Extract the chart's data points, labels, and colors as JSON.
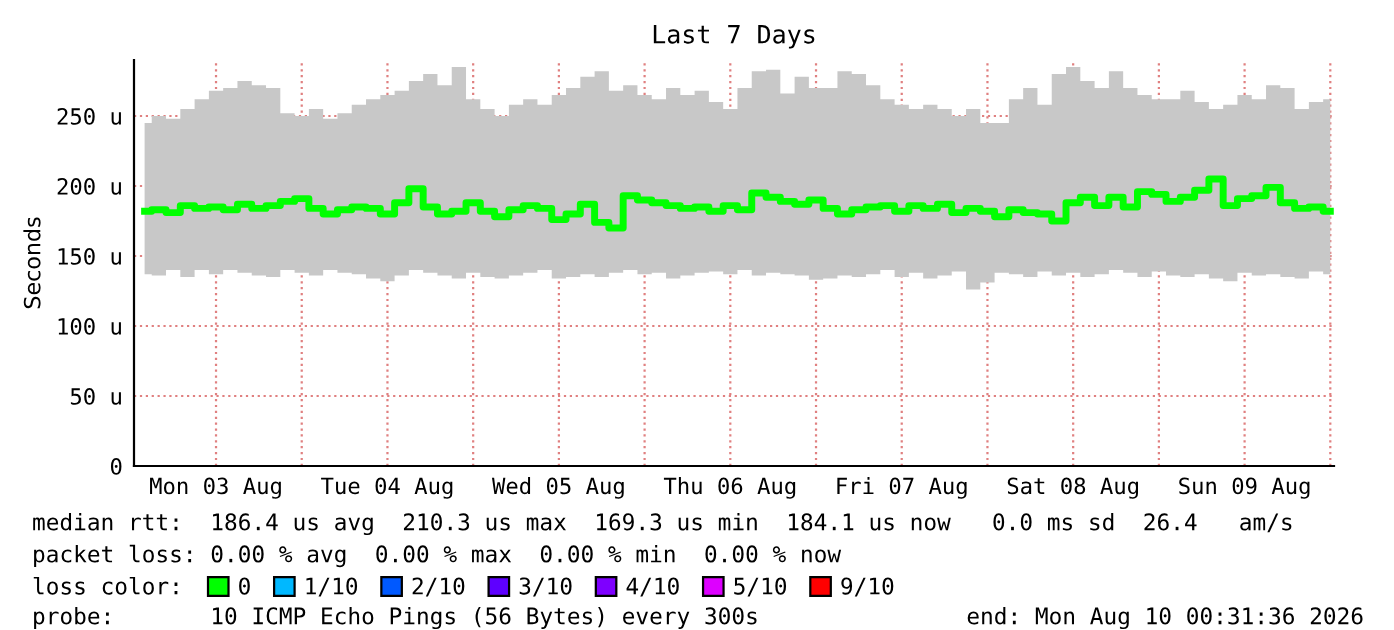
{
  "chart_data": {
    "type": "step",
    "title": "Last 7 Days",
    "ylabel": "Seconds",
    "x": [
      "2026-08-03T02:00",
      "2026-08-03T04:00",
      "2026-08-03T06:00",
      "2026-08-03T08:00",
      "2026-08-03T10:00",
      "2026-08-03T12:00",
      "2026-08-03T14:00",
      "2026-08-03T16:00",
      "2026-08-03T18:00",
      "2026-08-03T20:00",
      "2026-08-03T22:00",
      "2026-08-04T00:00",
      "2026-08-04T02:00",
      "2026-08-04T04:00",
      "2026-08-04T06:00",
      "2026-08-04T08:00",
      "2026-08-04T10:00",
      "2026-08-04T12:00",
      "2026-08-04T14:00",
      "2026-08-04T16:00",
      "2026-08-04T18:00",
      "2026-08-04T20:00",
      "2026-08-04T22:00",
      "2026-08-05T00:00",
      "2026-08-05T02:00",
      "2026-08-05T04:00",
      "2026-08-05T06:00",
      "2026-08-05T08:00",
      "2026-08-05T10:00",
      "2026-08-05T12:00",
      "2026-08-05T14:00",
      "2026-08-05T16:00",
      "2026-08-05T18:00",
      "2026-08-05T20:00",
      "2026-08-05T22:00",
      "2026-08-06T00:00",
      "2026-08-06T02:00",
      "2026-08-06T04:00",
      "2026-08-06T06:00",
      "2026-08-06T08:00",
      "2026-08-06T10:00",
      "2026-08-06T12:00",
      "2026-08-06T14:00",
      "2026-08-06T16:00",
      "2026-08-06T18:00",
      "2026-08-06T20:00",
      "2026-08-06T22:00",
      "2026-08-07T00:00",
      "2026-08-07T02:00",
      "2026-08-07T04:00",
      "2026-08-07T06:00",
      "2026-08-07T08:00",
      "2026-08-07T10:00",
      "2026-08-07T12:00",
      "2026-08-07T14:00",
      "2026-08-07T16:00",
      "2026-08-07T18:00",
      "2026-08-07T20:00",
      "2026-08-07T22:00",
      "2026-08-08T00:00",
      "2026-08-08T02:00",
      "2026-08-08T04:00",
      "2026-08-08T06:00",
      "2026-08-08T08:00",
      "2026-08-08T10:00",
      "2026-08-08T12:00",
      "2026-08-08T14:00",
      "2026-08-08T16:00",
      "2026-08-08T18:00",
      "2026-08-08T20:00",
      "2026-08-08T22:00",
      "2026-08-09T00:00",
      "2026-08-09T02:00",
      "2026-08-09T04:00",
      "2026-08-09T06:00",
      "2026-08-09T08:00",
      "2026-08-09T10:00",
      "2026-08-09T12:00",
      "2026-08-09T14:00",
      "2026-08-09T16:00",
      "2026-08-09T18:00",
      "2026-08-09T20:00",
      "2026-08-09T22:00",
      "2026-08-10T00:00"
    ],
    "series": [
      {
        "name": "0",
        "color": "#00ff00",
        "values": [
          182,
          183,
          181,
          186,
          184,
          185,
          183,
          187,
          184,
          186,
          189,
          191,
          184,
          180,
          183,
          185,
          184,
          180,
          188,
          198,
          185,
          180,
          182,
          188,
          182,
          178,
          183,
          186,
          184,
          176,
          180,
          187,
          174,
          170,
          193,
          190,
          188,
          186,
          184,
          185,
          182,
          186,
          183,
          195,
          192,
          189,
          187,
          190,
          184,
          180,
          183,
          185,
          186,
          182,
          186,
          184,
          187,
          181,
          184,
          182,
          178,
          183,
          181,
          180,
          175,
          188,
          192,
          186,
          192,
          185,
          196,
          194,
          189,
          192,
          197,
          205,
          186,
          191,
          193,
          199,
          188,
          184,
          185,
          182
        ],
        "upper": [
          245,
          250,
          248,
          255,
          262,
          268,
          270,
          275,
          272,
          270,
          252,
          250,
          255,
          248,
          252,
          258,
          262,
          265,
          268,
          275,
          280,
          272,
          285,
          262,
          255,
          250,
          258,
          262,
          258,
          265,
          270,
          278,
          282,
          268,
          272,
          265,
          262,
          270,
          265,
          268,
          260,
          255,
          270,
          282,
          283,
          266,
          278,
          270,
          270,
          282,
          280,
          272,
          262,
          258,
          255,
          258,
          255,
          250,
          255,
          245,
          245,
          262,
          270,
          258,
          280,
          285,
          275,
          270,
          282,
          270,
          265,
          262,
          262,
          268,
          260,
          255,
          258,
          265,
          262,
          272,
          270,
          255,
          260,
          262
        ],
        "lower": [
          137,
          136,
          140,
          135,
          140,
          137,
          140,
          138,
          136,
          135,
          140,
          138,
          136,
          140,
          138,
          137,
          134,
          132,
          136,
          140,
          138,
          136,
          134,
          138,
          135,
          134,
          136,
          138,
          140,
          134,
          135,
          137,
          135,
          138,
          140,
          137,
          138,
          134,
          136,
          138,
          139,
          137,
          140,
          136,
          138,
          137,
          136,
          133,
          134,
          136,
          135,
          137,
          140,
          135,
          138,
          134,
          136,
          139,
          126,
          131,
          138,
          137,
          135,
          139,
          136,
          138,
          135,
          137,
          140,
          138,
          135,
          139,
          136,
          135,
          137,
          134,
          132,
          138,
          136,
          137,
          135,
          134,
          139,
          137
        ]
      },
      {
        "name": "1/10",
        "color": "#00b8ff",
        "values": [
          null,
          null,
          null,
          null,
          null,
          null,
          null,
          null,
          null,
          null,
          null,
          null,
          null,
          null,
          null,
          null,
          null,
          null,
          null,
          null,
          null,
          null,
          null,
          null,
          null,
          null,
          null,
          null,
          null,
          null,
          null,
          null,
          null,
          null,
          null,
          null,
          null,
          null,
          null,
          null,
          null,
          null,
          null,
          null,
          null,
          null,
          null,
          null,
          null,
          null,
          null,
          null,
          null,
          null,
          null,
          null,
          null,
          null,
          null,
          null,
          null,
          null,
          null,
          null,
          null,
          null,
          null,
          null,
          null,
          null,
          null,
          null,
          null,
          null,
          null,
          null,
          null,
          null,
          null,
          null,
          null,
          null,
          null,
          null
        ]
      },
      {
        "name": "2/10",
        "color": "#0059ff",
        "values": [
          null,
          null,
          null,
          null,
          null,
          null,
          null,
          null,
          null,
          null,
          null,
          null,
          null,
          null,
          null,
          null,
          null,
          null,
          null,
          null,
          null,
          null,
          null,
          null,
          null,
          null,
          null,
          null,
          null,
          null,
          null,
          null,
          null,
          null,
          null,
          null,
          null,
          null,
          null,
          null,
          null,
          null,
          null,
          null,
          null,
          null,
          null,
          null,
          null,
          null,
          null,
          null,
          null,
          null,
          null,
          null,
          null,
          null,
          null,
          null,
          null,
          null,
          null,
          null,
          null,
          null,
          null,
          null,
          null,
          null,
          null,
          null,
          null,
          null,
          null,
          null,
          null,
          null,
          null,
          null,
          null,
          null,
          null,
          null
        ]
      },
      {
        "name": "3/10",
        "color": "#5e00ff",
        "values": [
          null,
          null,
          null,
          null,
          null,
          null,
          null,
          null,
          null,
          null,
          null,
          null,
          null,
          null,
          null,
          null,
          null,
          null,
          null,
          null,
          null,
          null,
          null,
          null,
          null,
          null,
          null,
          null,
          null,
          null,
          null,
          null,
          null,
          null,
          null,
          null,
          null,
          null,
          null,
          null,
          null,
          null,
          null,
          null,
          null,
          null,
          null,
          null,
          null,
          null,
          null,
          null,
          null,
          null,
          null,
          null,
          null,
          null,
          null,
          null,
          null,
          null,
          null,
          null,
          null,
          null,
          null,
          null,
          null,
          null,
          null,
          null,
          null,
          null,
          null,
          null,
          null,
          null,
          null,
          null,
          null,
          null,
          null,
          null
        ]
      },
      {
        "name": "4/10",
        "color": "#7e00ff",
        "values": [
          null,
          null,
          null,
          null,
          null,
          null,
          null,
          null,
          null,
          null,
          null,
          null,
          null,
          null,
          null,
          null,
          null,
          null,
          null,
          null,
          null,
          null,
          null,
          null,
          null,
          null,
          null,
          null,
          null,
          null,
          null,
          null,
          null,
          null,
          null,
          null,
          null,
          null,
          null,
          null,
          null,
          null,
          null,
          null,
          null,
          null,
          null,
          null,
          null,
          null,
          null,
          null,
          null,
          null,
          null,
          null,
          null,
          null,
          null,
          null,
          null,
          null,
          null,
          null,
          null,
          null,
          null,
          null,
          null,
          null,
          null,
          null,
          null,
          null,
          null,
          null,
          null,
          null,
          null,
          null,
          null,
          null,
          null,
          null
        ]
      },
      {
        "name": "5/10",
        "color": "#dd00ff",
        "values": [
          null,
          null,
          null,
          null,
          null,
          null,
          null,
          null,
          null,
          null,
          null,
          null,
          null,
          null,
          null,
          null,
          null,
          null,
          null,
          null,
          null,
          null,
          null,
          null,
          null,
          null,
          null,
          null,
          null,
          null,
          null,
          null,
          null,
          null,
          null,
          null,
          null,
          null,
          null,
          null,
          null,
          null,
          null,
          null,
          null,
          null,
          null,
          null,
          null,
          null,
          null,
          null,
          null,
          null,
          null,
          null,
          null,
          null,
          null,
          null,
          null,
          null,
          null,
          null,
          null,
          null,
          null,
          null,
          null,
          null,
          null,
          null,
          null,
          null,
          null,
          null,
          null,
          null,
          null,
          null,
          null,
          null,
          null,
          null
        ]
      },
      {
        "name": "9/10",
        "color": "#ff0000",
        "values": [
          null,
          null,
          null,
          null,
          null,
          null,
          null,
          null,
          null,
          null,
          null,
          null,
          null,
          null,
          null,
          null,
          null,
          null,
          null,
          null,
          null,
          null,
          null,
          null,
          null,
          null,
          null,
          null,
          null,
          null,
          null,
          null,
          null,
          null,
          null,
          null,
          null,
          null,
          null,
          null,
          null,
          null,
          null,
          null,
          null,
          null,
          null,
          null,
          null,
          null,
          null,
          null,
          null,
          null,
          null,
          null,
          null,
          null,
          null,
          null,
          null,
          null,
          null,
          null,
          null,
          null,
          null,
          null,
          null,
          null,
          null,
          null,
          null,
          null,
          null,
          null,
          null,
          null,
          null,
          null,
          null,
          null,
          null,
          null
        ]
      }
    ],
    "xlim": [
      "2026-08-03T00:31",
      "2026-08-10T00:31"
    ],
    "xticks": [
      {
        "value": "2026-08-03T12:00",
        "label": "Mon 03 Aug"
      },
      {
        "value": "2026-08-04T00:00",
        "label": null
      },
      {
        "value": "2026-08-04T12:00",
        "label": "Tue 04 Aug"
      },
      {
        "value": "2026-08-05T00:00",
        "label": null
      },
      {
        "value": "2026-08-05T12:00",
        "label": "Wed 05 Aug"
      },
      {
        "value": "2026-08-06T00:00",
        "label": null
      },
      {
        "value": "2026-08-06T12:00",
        "label": "Thu 06 Aug"
      },
      {
        "value": "2026-08-07T00:00",
        "label": null
      },
      {
        "value": "2026-08-07T12:00",
        "label": "Fri 07 Aug"
      },
      {
        "value": "2026-08-08T00:00",
        "label": null
      },
      {
        "value": "2026-08-08T12:00",
        "label": "Sat 08 Aug"
      },
      {
        "value": "2026-08-09T00:00",
        "label": null
      },
      {
        "value": "2026-08-09T12:00",
        "label": "Sun 09 Aug"
      },
      {
        "value": "2026-08-10T00:00",
        "label": null
      }
    ],
    "ylim": [
      0,
      290
    ],
    "yticks": [
      0,
      {
        "value": 50,
        "label": "50 u"
      },
      {
        "value": 100,
        "label": "100 u"
      },
      {
        "value": 150,
        "label": "150 u"
      },
      {
        "value": 200,
        "label": "200 u"
      },
      {
        "value": 250,
        "label": "250 u"
      }
    ],
    "grid": true,
    "legend": "bottom",
    "legend_title": "loss color:",
    "annotations": [
      "median rtt:  186.4 us avg  210.3 us max  169.3 us min  184.1 us now   0.0 ms sd  26.4   am/s",
      "packet loss: 0.00 % avg  0.00 % max  0.00 % min  0.00 % now",
      "probe:       10 ICMP Echo Pings (56 Bytes) every 300s",
      "end: Mon Aug 10 00:31:36 2026"
    ]
  }
}
